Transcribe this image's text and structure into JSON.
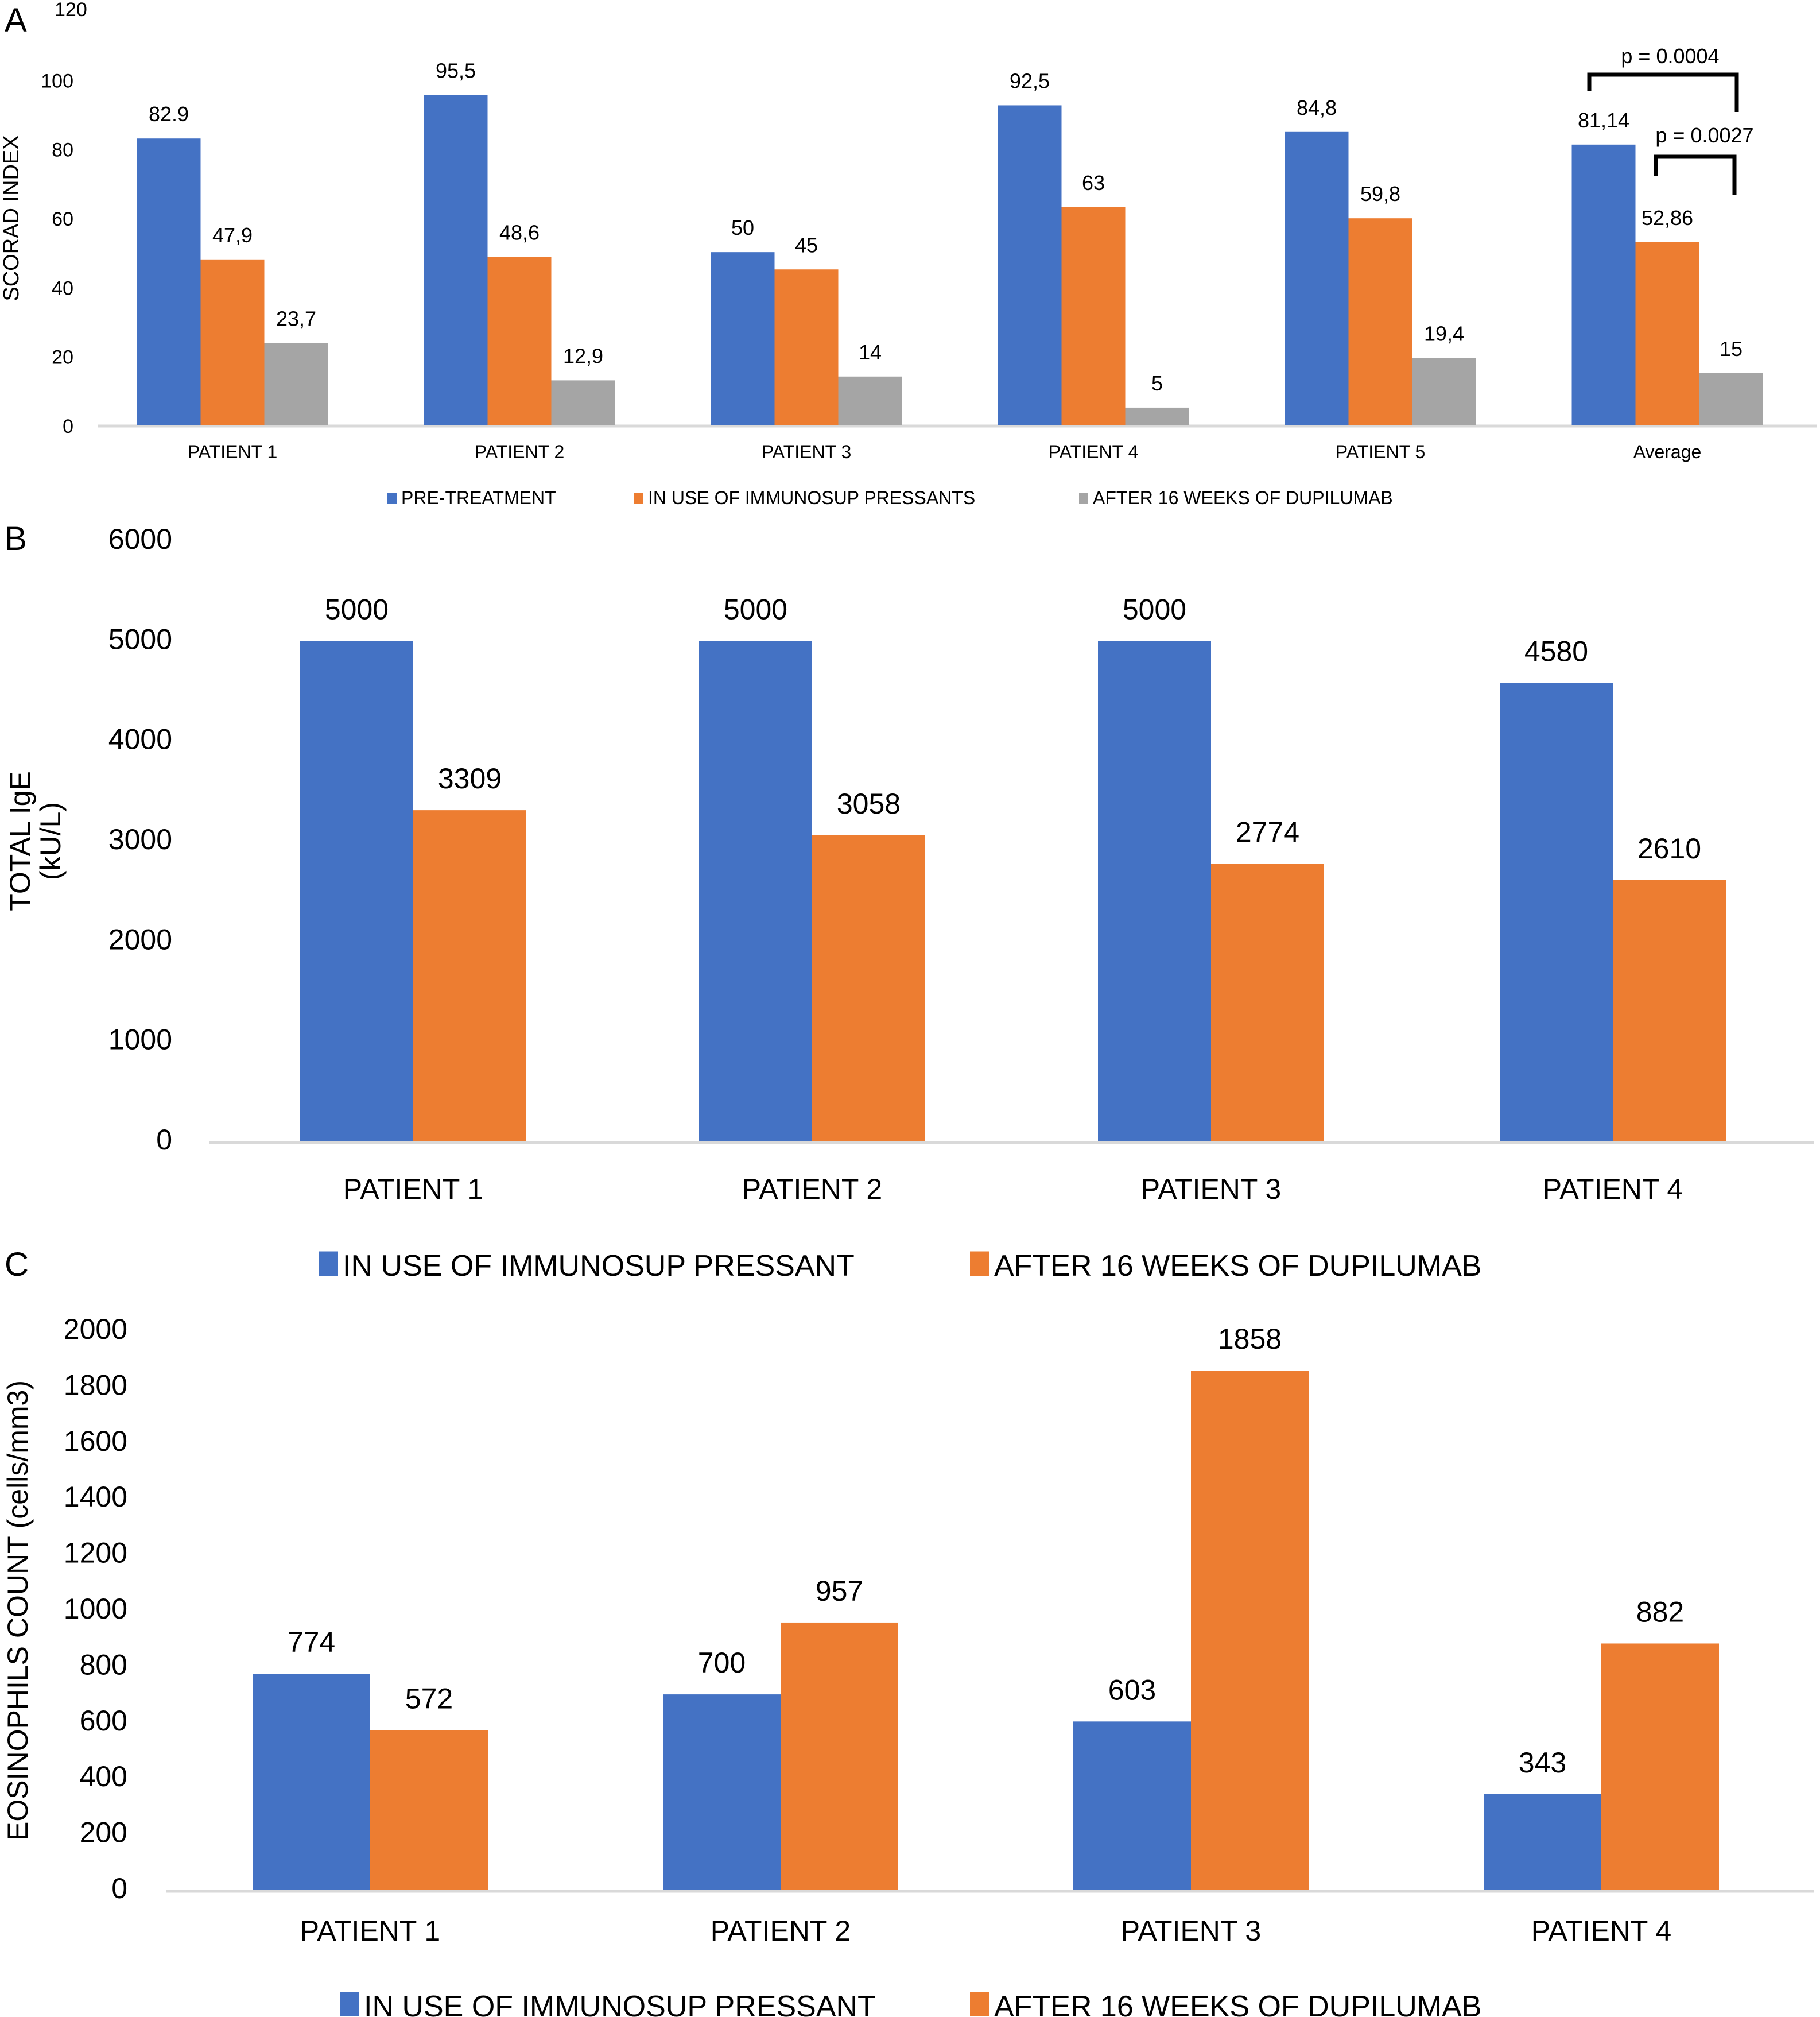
{
  "colors": {
    "blue": "#4472C4",
    "orange": "#ED7D31",
    "gray": "#A5A5A5",
    "axis": "#D9D9D9",
    "bracket": "#000000"
  },
  "chart_data": [
    {
      "panel": "A",
      "type": "bar",
      "title": "",
      "xlabel": "",
      "ylabel": "SCORAD INDEX",
      "ylim": [
        0,
        120
      ],
      "yticks": [
        0,
        20,
        40,
        60,
        80,
        100,
        120
      ],
      "grid": false,
      "legend_position": "bottom",
      "categories": [
        "PATIENT 1",
        "PATIENT 2",
        "PATIENT 3",
        "PATIENT 4",
        "PATIENT 5",
        "Average"
      ],
      "series": [
        {
          "name": "PRE-TREATMENT",
          "color": "#4472C4",
          "values": [
            82.9,
            95.5,
            50,
            92.5,
            84.8,
            81.14
          ],
          "labels": [
            "82.9",
            "95,5",
            "50",
            "92,5",
            "84,8",
            "81,14"
          ]
        },
        {
          "name": "IN USE OF IMMUNOSUP PRESSANTS",
          "color": "#ED7D31",
          "values": [
            47.9,
            48.6,
            45,
            63,
            59.8,
            52.86
          ],
          "labels": [
            "47,9",
            "48,6",
            "45",
            "63",
            "59,8",
            "52,86"
          ]
        },
        {
          "name": "AFTER 16 WEEKS OF DUPILUMAB",
          "color": "#A5A5A5",
          "values": [
            23.7,
            12.9,
            14,
            5,
            19.4,
            15
          ],
          "labels": [
            "23,7",
            "12,9",
            "14",
            "5",
            "19,4",
            "15"
          ]
        }
      ],
      "annotations": [
        {
          "text": "p = 0.0004",
          "between": [
            "PRE-TREATMENT",
            "AFTER 16 WEEKS OF DUPILUMAB"
          ],
          "category": "Average"
        },
        {
          "text": "p = 0.0027",
          "between": [
            "IN USE OF IMMUNOSUP PRESSANTS",
            "AFTER 16 WEEKS OF DUPILUMAB"
          ],
          "category": "Average"
        }
      ]
    },
    {
      "panel": "B",
      "type": "bar",
      "title": "",
      "xlabel": "",
      "ylabel": "TOTAL IgE (kU/L)",
      "ylabel_lines": [
        "TOTAL IgE",
        "(kU/L)"
      ],
      "ylim": [
        0,
        6000
      ],
      "yticks": [
        0,
        1000,
        2000,
        3000,
        4000,
        5000,
        6000
      ],
      "grid": false,
      "legend_position": "bottom",
      "categories": [
        "PATIENT 1",
        "PATIENT 2",
        "PATIENT 3",
        "PATIENT 4"
      ],
      "series": [
        {
          "name": "IN USE OF IMMUNOSUP PRESSANT",
          "color": "#4472C4",
          "values": [
            5000,
            5000,
            5000,
            4580
          ],
          "labels": [
            "5000",
            "5000",
            "5000",
            "4580"
          ]
        },
        {
          "name": "AFTER 16 WEEKS OF DUPILUMAB",
          "color": "#ED7D31",
          "values": [
            3309,
            3058,
            2774,
            2610
          ],
          "labels": [
            "3309",
            "3058",
            "2774",
            "2610"
          ]
        }
      ]
    },
    {
      "panel": "C",
      "type": "bar",
      "title": "",
      "xlabel": "",
      "ylabel": "EOSINOPHILS COUNT (cells/mm3)",
      "ylim": [
        0,
        2000
      ],
      "yticks": [
        0,
        200,
        400,
        600,
        800,
        1000,
        1200,
        1400,
        1600,
        1800,
        2000
      ],
      "grid": false,
      "legend_position": "bottom",
      "categories": [
        "PATIENT 1",
        "PATIENT 2",
        "PATIENT 3",
        "PATIENT 4"
      ],
      "series": [
        {
          "name": "IN USE OF IMMUNOSUP PRESSANT",
          "color": "#4472C4",
          "values": [
            774,
            700,
            603,
            343
          ],
          "labels": [
            "774",
            "700",
            "603",
            "343"
          ]
        },
        {
          "name": "AFTER 16 WEEKS OF DUPILUMAB",
          "color": "#ED7D31",
          "values": [
            572,
            957,
            1858,
            882
          ],
          "labels": [
            "572",
            "957",
            "1858",
            "882"
          ]
        }
      ]
    }
  ],
  "panels": {
    "A": {
      "letter": "A"
    },
    "B": {
      "letter": "B"
    },
    "C": {
      "letter": "C"
    }
  }
}
